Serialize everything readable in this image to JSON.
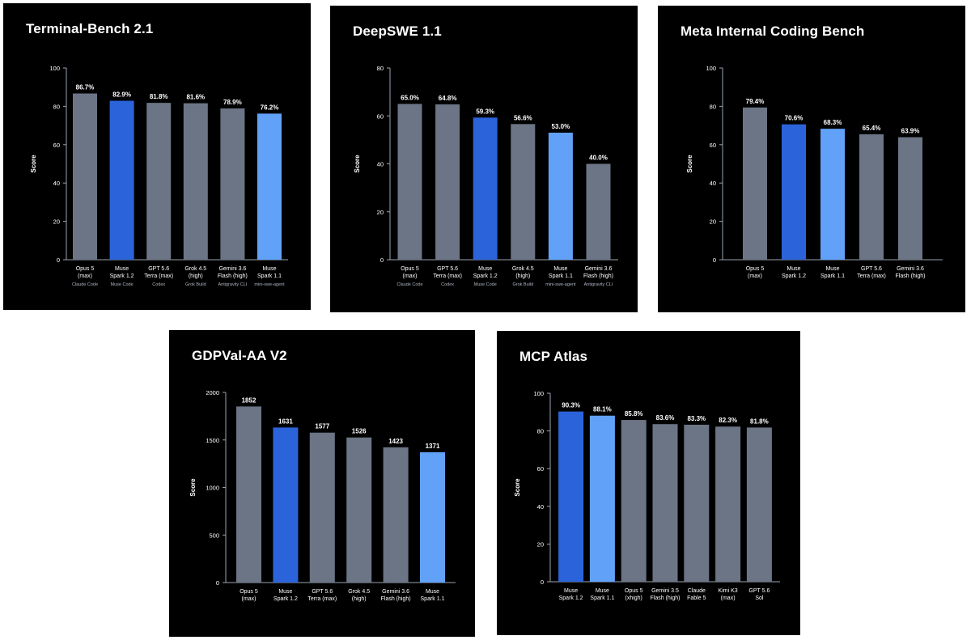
{
  "colors": {
    "panel_bg": "#000000",
    "bar_gray": "#6b7585",
    "bar_blue": "#2b63da",
    "bar_light_blue": "#61a2f8",
    "axis": "#9aa3b0",
    "text": "#ffffff",
    "sub_text": "#aeb6c2"
  },
  "chart_data": [
    {
      "id": "terminal-bench",
      "type": "bar",
      "title": "Terminal-Bench 2.1",
      "ylabel": "Score",
      "ylim": [
        0,
        100
      ],
      "yticks": [
        0,
        20,
        40,
        60,
        80,
        100
      ],
      "grid": false,
      "categories": [
        {
          "lines": [
            "Opus 5",
            "(max)"
          ],
          "sub": "Claude Code"
        },
        {
          "lines": [
            "Muse",
            "Spark 1.2"
          ],
          "sub": "Muse Code"
        },
        {
          "lines": [
            "GPT 5.6",
            "Terra (max)"
          ],
          "sub": "Codex"
        },
        {
          "lines": [
            "Grok 4.5",
            "(high)"
          ],
          "sub": "Grok Build"
        },
        {
          "lines": [
            "Gemini 3.6",
            "Flash (high)"
          ],
          "sub": "Antigravity CLI"
        },
        {
          "lines": [
            "Muse",
            "Spark 1.1"
          ],
          "sub": "mini-swe-agent"
        }
      ],
      "values": [
        86.7,
        82.9,
        81.8,
        81.6,
        78.9,
        76.2
      ],
      "labels": [
        "86.7%",
        "82.9%",
        "81.8%",
        "81.6%",
        "78.9%",
        "76.2%"
      ],
      "bar_colors": [
        "gray",
        "blue",
        "gray",
        "gray",
        "gray",
        "light_blue"
      ]
    },
    {
      "id": "deepswe",
      "type": "bar",
      "title": "DeepSWE 1.1",
      "ylabel": "Score",
      "ylim": [
        0,
        80
      ],
      "yticks": [
        0,
        20,
        40,
        60,
        80
      ],
      "grid": false,
      "categories": [
        {
          "lines": [
            "Opus 5",
            "(max)"
          ],
          "sub": "Claude Code"
        },
        {
          "lines": [
            "GPT 5.6",
            "Terra (max)"
          ],
          "sub": "Codex"
        },
        {
          "lines": [
            "Muse",
            "Spark 1.2"
          ],
          "sub": "Muse Code"
        },
        {
          "lines": [
            "Grok 4.5",
            "(high)"
          ],
          "sub": "Grok Build"
        },
        {
          "lines": [
            "Muse",
            "Spark 1.1"
          ],
          "sub": "mini-swe-agent"
        },
        {
          "lines": [
            "Gemini 3.6",
            "Flash (high)"
          ],
          "sub": "Antigravity CLI"
        }
      ],
      "values": [
        65.0,
        64.8,
        59.3,
        56.6,
        53.0,
        40.0
      ],
      "labels": [
        "65.0%",
        "64.8%",
        "59.3%",
        "56.6%",
        "53.0%",
        "40.0%"
      ],
      "bar_colors": [
        "gray",
        "gray",
        "blue",
        "gray",
        "light_blue",
        "gray"
      ]
    },
    {
      "id": "meta-internal",
      "type": "bar",
      "title": "Meta Internal Coding Bench",
      "ylabel": "Score",
      "ylim": [
        0,
        100
      ],
      "yticks": [
        0,
        20,
        40,
        60,
        80,
        100
      ],
      "grid": false,
      "categories": [
        {
          "lines": [
            "Opus 5",
            "(max)"
          ]
        },
        {
          "lines": [
            "Muse",
            "Spark 1.2"
          ]
        },
        {
          "lines": [
            "Muse",
            "Spark 1.1"
          ]
        },
        {
          "lines": [
            "GPT 5.6",
            "Terra (max)"
          ]
        },
        {
          "lines": [
            "Gemini 3.6",
            "Flash (high)"
          ]
        }
      ],
      "values": [
        79.4,
        70.6,
        68.3,
        65.4,
        63.9
      ],
      "labels": [
        "79.4%",
        "70.6%",
        "68.3%",
        "65.4%",
        "63.9%"
      ],
      "bar_colors": [
        "gray",
        "blue",
        "light_blue",
        "gray",
        "gray"
      ]
    },
    {
      "id": "gdpval",
      "type": "bar",
      "title": "GDPVal-AA V2",
      "ylabel": "Score",
      "ylim": [
        0,
        2000
      ],
      "yticks": [
        0,
        500,
        1000,
        1500,
        2000
      ],
      "grid": false,
      "categories": [
        {
          "lines": [
            "Opus 5",
            "(max)"
          ]
        },
        {
          "lines": [
            "Muse",
            "Spark 1.2"
          ]
        },
        {
          "lines": [
            "GPT 5.6",
            "Terra (max)"
          ]
        },
        {
          "lines": [
            "Grok 4.5",
            "(high)"
          ]
        },
        {
          "lines": [
            "Gemini 3.6",
            "Flash (high)"
          ]
        },
        {
          "lines": [
            "Muse",
            "Spark 1.1"
          ]
        }
      ],
      "values": [
        1852,
        1631,
        1577,
        1526,
        1423,
        1371
      ],
      "labels": [
        "1852",
        "1631",
        "1577",
        "1526",
        "1423",
        "1371"
      ],
      "bar_colors": [
        "gray",
        "blue",
        "gray",
        "gray",
        "gray",
        "light_blue"
      ]
    },
    {
      "id": "mcp-atlas",
      "type": "bar",
      "title": "MCP Atlas",
      "ylabel": "Score",
      "ylim": [
        0,
        100
      ],
      "yticks": [
        0,
        20,
        40,
        60,
        80,
        100
      ],
      "grid": false,
      "categories": [
        {
          "lines": [
            "Muse",
            "Spark 1.2"
          ]
        },
        {
          "lines": [
            "Muse",
            "Spark 1.1"
          ]
        },
        {
          "lines": [
            "Opus 5",
            "(xhigh)"
          ]
        },
        {
          "lines": [
            "Gemini 3.5",
            "Flash (high)"
          ]
        },
        {
          "lines": [
            "Claude",
            "Fable 5"
          ]
        },
        {
          "lines": [
            "Kimi K3",
            "(max)"
          ]
        },
        {
          "lines": [
            "GPT 5.6",
            "Sol"
          ]
        }
      ],
      "values": [
        90.3,
        88.1,
        85.8,
        83.6,
        83.3,
        82.3,
        81.8
      ],
      "labels": [
        "90.3%",
        "88.1%",
        "85.8%",
        "83.6%",
        "83.3%",
        "82.3%",
        "81.8%"
      ],
      "bar_colors": [
        "blue",
        "light_blue",
        "gray",
        "gray",
        "gray",
        "gray",
        "gray"
      ]
    }
  ]
}
